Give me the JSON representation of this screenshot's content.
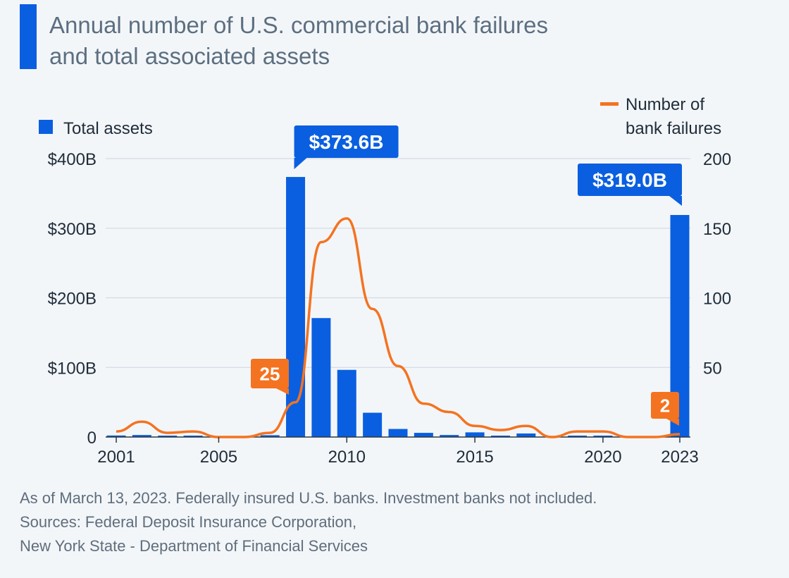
{
  "title": "Annual number of U.S. commercial bank failures\nand total associated assets",
  "footer": {
    "note": "As of March 13, 2023. Federally insured U.S. banks. Investment banks not included.",
    "source1": "Sources: Federal Deposit Insurance Corporation,",
    "source2": "New York State - Department of Financial Services"
  },
  "colors": {
    "bar": "#0a5fe0",
    "line": "#f47320",
    "grid": "#d3dbe3",
    "text": "#1f2d3a"
  },
  "chart_data": {
    "type": "bar",
    "x": [
      2001,
      2002,
      2003,
      2004,
      2005,
      2006,
      2007,
      2008,
      2009,
      2010,
      2011,
      2012,
      2013,
      2014,
      2015,
      2016,
      2017,
      2018,
      2019,
      2020,
      2021,
      2022,
      2023
    ],
    "x_tick_labels": [
      "2001",
      "2005",
      "2010",
      "2015",
      "2020",
      "2023"
    ],
    "series": [
      {
        "name": "Total assets",
        "type": "bar",
        "axis": "left",
        "values": [
          2.2,
          2.9,
          1.1,
          0.2,
          0,
          0,
          2.6,
          373.6,
          170.9,
          96.5,
          34.9,
          11.6,
          6.0,
          2.9,
          6.7,
          0.3,
          5.1,
          0,
          0.2,
          0.5,
          0,
          0,
          319.0
        ]
      },
      {
        "name": "Number of bank failures",
        "type": "line",
        "axis": "right",
        "values": [
          4,
          11,
          3,
          4,
          0,
          0,
          3,
          25,
          140,
          157,
          92,
          51,
          24,
          18,
          8,
          5,
          8,
          0,
          4,
          4,
          0,
          0,
          2
        ]
      }
    ],
    "left_axis": {
      "ylim": [
        0,
        400
      ],
      "ticks": [
        "0",
        "$100B",
        "$200B",
        "$300B",
        "$400B"
      ]
    },
    "right_axis": {
      "ylim": [
        0,
        200
      ],
      "ticks": [
        "50",
        "100",
        "150",
        "200"
      ]
    },
    "annotations": [
      {
        "series": "Total assets",
        "x": 2008,
        "label": "$373.6B"
      },
      {
        "series": "Total assets",
        "x": 2023,
        "label": "$319.0B"
      },
      {
        "series": "Number of bank failures",
        "x": 2008,
        "label": "25"
      },
      {
        "series": "Number of bank failures",
        "x": 2023,
        "label": "2"
      }
    ],
    "legend": {
      "assets_label": "Total assets",
      "failures_label": [
        "Number of",
        "bank failures"
      ],
      "placement": "top"
    },
    "grid": true
  }
}
